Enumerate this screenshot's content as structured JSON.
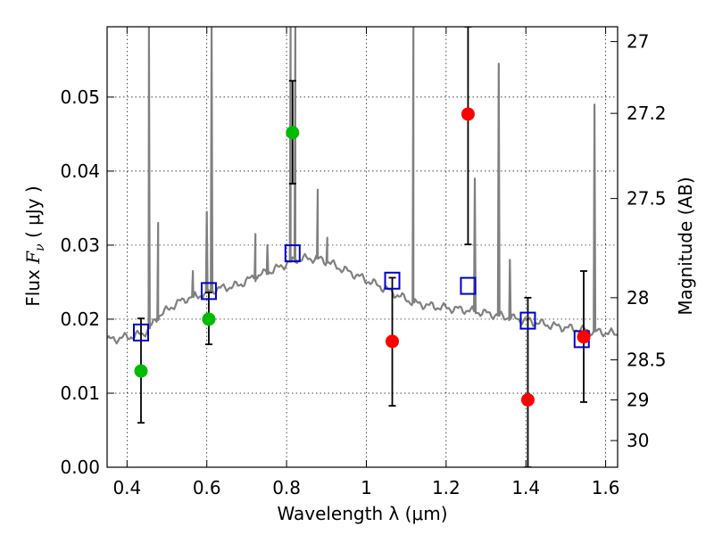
{
  "chart_data": {
    "type": "scatter",
    "title": "",
    "xlabel": "Wavelength  λ (μm)",
    "ylabel_prefix": "Flux  ",
    "ylabel_var": "F",
    "ylabel_sub": "ν",
    "ylabel_unit": "  ( μJy )",
    "y2label": "Magnitude (AB)",
    "xlim": [
      0.35,
      1.63
    ],
    "ylim": [
      0.0,
      0.0595
    ],
    "grid": true,
    "legend": "none",
    "xticks": [
      0.4,
      0.6,
      0.8,
      1.0,
      1.2,
      1.4,
      1.6
    ],
    "xtick_labels": [
      "0.4",
      "0.6",
      "0.8",
      "1",
      "1.2",
      "1.4",
      "1.6"
    ],
    "yticks": [
      0.0,
      0.01,
      0.02,
      0.03,
      0.04,
      0.05
    ],
    "ytick_labels": [
      "0.00",
      "0.01",
      "0.02",
      "0.03",
      "0.04",
      "0.05"
    ],
    "y2ticks": [
      {
        "mag": "27",
        "flux": 0.0575
      },
      {
        "mag": "27.2",
        "flux": 0.0478
      },
      {
        "mag": "27.5",
        "flux": 0.0363
      },
      {
        "mag": "28",
        "flux": 0.0229
      },
      {
        "mag": "28.5",
        "flux": 0.0145
      },
      {
        "mag": "29",
        "flux": 0.0091
      },
      {
        "mag": "30",
        "flux": 0.0036
      }
    ],
    "colors": {
      "model": "#808080",
      "squares": "#0000cc",
      "detections": "#00bb00",
      "upper": "#ff0000",
      "errorbars": "#000000"
    },
    "model_spectrum": {
      "x": [
        0.35,
        0.38,
        0.41,
        0.44,
        0.46,
        0.48,
        0.5,
        0.52,
        0.55,
        0.58,
        0.6,
        0.62,
        0.65,
        0.68,
        0.7,
        0.72,
        0.74,
        0.77,
        0.8,
        0.82,
        0.85,
        0.88,
        0.9,
        0.93,
        0.96,
        1.0,
        1.04,
        1.08,
        1.12,
        1.16,
        1.2,
        1.24,
        1.28,
        1.32,
        1.36,
        1.4,
        1.44,
        1.48,
        1.52,
        1.56,
        1.6,
        1.63
      ],
      "y": [
        0.0172,
        0.0174,
        0.0177,
        0.018,
        0.019,
        0.0205,
        0.0212,
        0.022,
        0.0228,
        0.0232,
        0.0236,
        0.024,
        0.0243,
        0.0246,
        0.0252,
        0.0257,
        0.0261,
        0.0267,
        0.0275,
        0.028,
        0.0282,
        0.0282,
        0.0278,
        0.027,
        0.0263,
        0.0253,
        0.0243,
        0.0232,
        0.0222,
        0.0218,
        0.0215,
        0.0213,
        0.021,
        0.0206,
        0.0202,
        0.0198,
        0.0194,
        0.019,
        0.0187,
        0.0184,
        0.0182,
        0.018
      ]
    },
    "emission_lines": [
      {
        "x": 0.455,
        "peak": 0.0595
      },
      {
        "x": 0.478,
        "peak": 0.033
      },
      {
        "x": 0.565,
        "peak": 0.0265
      },
      {
        "x": 0.6,
        "peak": 0.0345
      },
      {
        "x": 0.612,
        "peak": 0.0595
      },
      {
        "x": 0.722,
        "peak": 0.0315
      },
      {
        "x": 0.752,
        "peak": 0.03
      },
      {
        "x": 0.81,
        "peak": 0.0595
      },
      {
        "x": 0.822,
        "peak": 0.0595
      },
      {
        "x": 0.878,
        "peak": 0.0375
      },
      {
        "x": 0.902,
        "peak": 0.031
      },
      {
        "x": 1.118,
        "peak": 0.0595
      },
      {
        "x": 1.272,
        "peak": 0.039
      },
      {
        "x": 1.332,
        "peak": 0.0545
      },
      {
        "x": 1.36,
        "peak": 0.028
      },
      {
        "x": 1.572,
        "peak": 0.049
      }
    ],
    "model_photometry": {
      "x": [
        0.435,
        0.605,
        0.815,
        1.065,
        1.255,
        1.405,
        1.54
      ],
      "y": [
        0.0182,
        0.0238,
        0.0289,
        0.0252,
        0.0245,
        0.0198,
        0.0173
      ]
    },
    "observed_detections": {
      "x": [
        0.435,
        0.605,
        0.815
      ],
      "y": [
        0.013,
        0.02,
        0.0452
      ],
      "yerr_low": [
        0.006,
        0.0166,
        0.0383
      ],
      "yerr_high": [
        0.0201,
        0.0236,
        0.0522
      ]
    },
    "observed_other": {
      "x": [
        1.065,
        1.255,
        1.405,
        1.545
      ],
      "y": [
        0.017,
        0.0477,
        0.0091,
        0.0176
      ],
      "yerr_low": [
        0.0083,
        0.0301,
        0.0,
        0.0088
      ],
      "yerr_high": [
        0.0256,
        0.0595,
        0.0229,
        0.0265
      ]
    }
  }
}
